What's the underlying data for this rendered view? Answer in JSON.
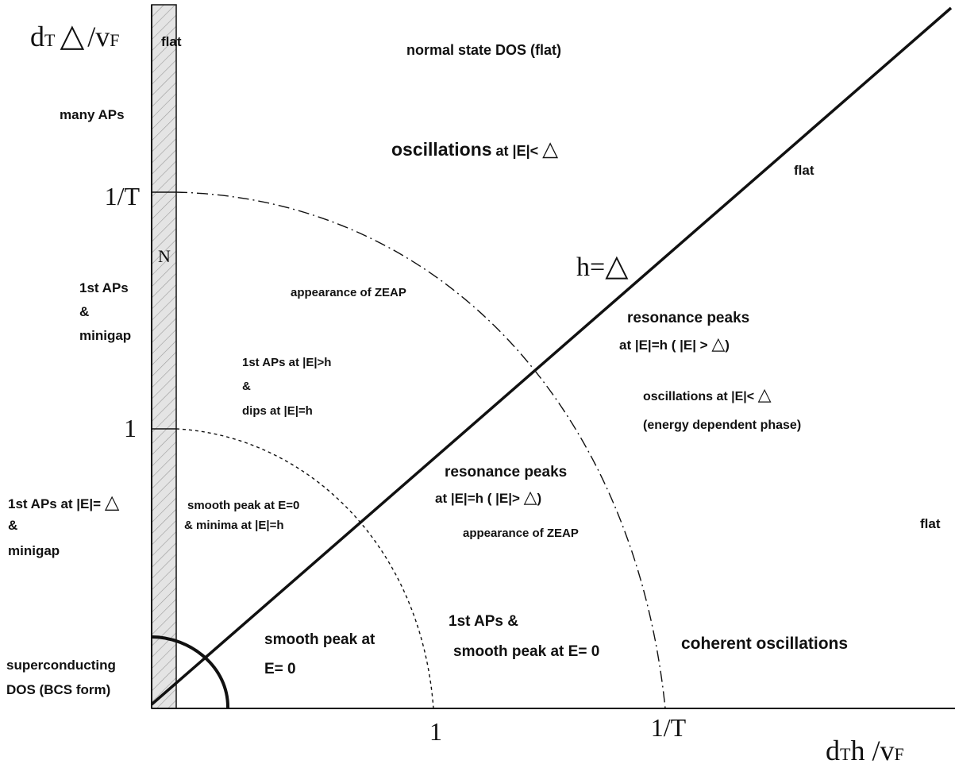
{
  "axes": {
    "y_label_prefix": "d",
    "y_label_sub1": "T",
    "y_label_delta": "△",
    "y_label_suffix": "/v",
    "y_label_sub2": "F",
    "x_label_prefix": "d",
    "x_label_sub1": "T",
    "x_label_main": "h /v",
    "x_label_sub2": "F",
    "y_ticks": [
      "1/T",
      "1"
    ],
    "x_ticks": [
      "1",
      "1/T"
    ]
  },
  "strip": {
    "flat": "flat",
    "N": "N"
  },
  "diagonal_label": {
    "prefix": "h=",
    "delta": "△"
  },
  "regions": {
    "normal_state": "normal state DOS (flat)",
    "many_aps": "many APs",
    "osc_top_prefix": "oscillations",
    "osc_top_mid": " at |E|< ",
    "osc_top_delta": "△",
    "flat_diag": "flat",
    "first_aps_minigap": [
      "1st APs",
      "&",
      "minigap"
    ],
    "zeap_upper": "appearance of ZEAP",
    "first_aps_dips": [
      "1st  APs at |E|>h",
      "&",
      " dips at  |E|=h"
    ],
    "res_peaks_right_title": "resonance peaks",
    "res_peaks_right_sub_a": "at  |E|=h ( |E| > ",
    "res_peaks_right_sub_delta": "△",
    "res_peaks_right_sub_b": ")",
    "osc_right_line1": "oscillations at |E|<  ",
    "osc_right_delta": "△",
    "osc_right_line2": "(energy dependent phase)",
    "left_aps_line1": "1st APs at |E|= ",
    "left_aps_delta": "△",
    "left_aps_rest": [
      "&",
      "minigap"
    ],
    "smooth_min": [
      "smooth peak at E=0",
      "& minima  at  |E|=h"
    ],
    "res_peaks_center_title": "resonance peaks",
    "res_peaks_center_sub_a": "at  |E|=h ( |E|> ",
    "res_peaks_center_sub_delta": "△",
    "res_peaks_center_sub_b": ")",
    "zeap_lower": "appearance of ZEAP",
    "flat_right": "flat",
    "smooth_peak": [
      "smooth peak at",
      "E= 0"
    ],
    "aps_smooth": [
      "1st  APs &",
      "smooth peak  at E= 0"
    ],
    "coherent": "coherent oscillations",
    "superconducting": [
      "superconducting",
      "DOS (BCS form)"
    ]
  }
}
